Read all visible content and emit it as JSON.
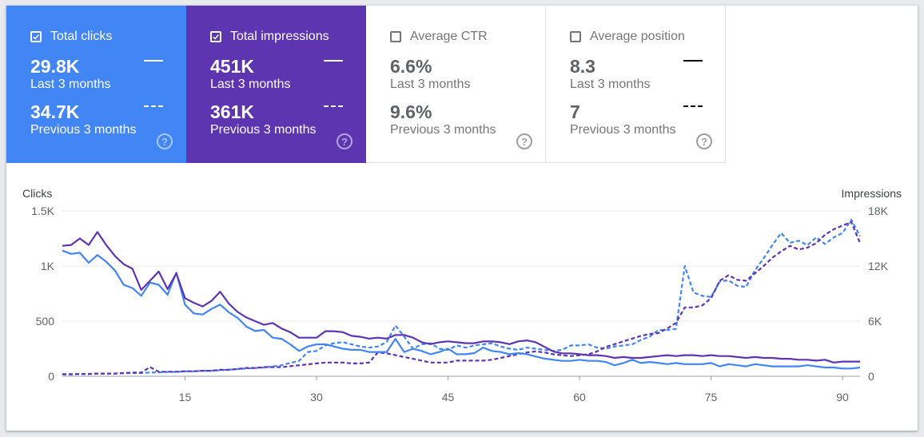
{
  "tiles": [
    {
      "label": "Total clicks",
      "checked": true,
      "current": "29.8K",
      "current_label": "Last 3 months",
      "previous": "34.7K",
      "previous_label": "Previous 3 months",
      "help": "?"
    },
    {
      "label": "Total impressions",
      "checked": true,
      "current": "451K",
      "current_label": "Last 3 months",
      "previous": "361K",
      "previous_label": "Previous 3 months",
      "help": "?"
    },
    {
      "label": "Average CTR",
      "checked": false,
      "current": "6.6%",
      "current_label": "Last 3 months",
      "previous": "9.6%",
      "previous_label": "Previous 3 months",
      "help": "?"
    },
    {
      "label": "Average position",
      "checked": false,
      "current": "8.3",
      "current_label": "Last 3 months",
      "previous": "7",
      "previous_label": "Previous 3 months",
      "help": "?"
    }
  ],
  "colors": {
    "clicks": "#4285f4",
    "impressions": "#5e35b1"
  },
  "chart_data": {
    "type": "line",
    "y_left": {
      "label": "Clicks",
      "range": [
        0,
        1500
      ],
      "ticks": [
        "0",
        "500",
        "1K",
        "1.5K"
      ]
    },
    "y_right": {
      "label": "Impressions",
      "range": [
        0,
        18000
      ],
      "ticks": [
        "0",
        "6K",
        "12K",
        "18K"
      ]
    },
    "x": {
      "range": [
        1,
        92
      ],
      "ticks": [
        "15",
        "30",
        "45",
        "60",
        "75",
        "90"
      ]
    },
    "grid": true,
    "series": [
      {
        "key": "clicks_last",
        "axis": "left",
        "color": "#4285f4",
        "style": "solid",
        "values": [
          1140,
          1110,
          1120,
          1030,
          1100,
          1040,
          960,
          830,
          800,
          730,
          850,
          830,
          740,
          940,
          650,
          570,
          560,
          610,
          650,
          580,
          530,
          450,
          410,
          420,
          350,
          340,
          290,
          230,
          270,
          290,
          290,
          270,
          250,
          240,
          240,
          220,
          220,
          220,
          340,
          220,
          250,
          230,
          200,
          220,
          250,
          200,
          200,
          210,
          260,
          230,
          220,
          200,
          210,
          200,
          180,
          160,
          150,
          140,
          140,
          150,
          140,
          140,
          130,
          100,
          120,
          150,
          120,
          130,
          120,
          110,
          120,
          110,
          110,
          110,
          120,
          90,
          110,
          100,
          90,
          110,
          100,
          90,
          90,
          90,
          90,
          100,
          90,
          80,
          80,
          70,
          70,
          80
        ]
      },
      {
        "key": "impressions_last",
        "axis": "right",
        "color": "#5e35b1",
        "style": "solid",
        "values": [
          14200,
          14300,
          15000,
          14300,
          15700,
          14300,
          13100,
          12200,
          11700,
          9400,
          10400,
          11400,
          9500,
          11200,
          8500,
          8000,
          7600,
          8200,
          9200,
          7900,
          7000,
          6400,
          6000,
          5600,
          5800,
          5200,
          4800,
          4200,
          4200,
          4200,
          4900,
          4900,
          4800,
          4400,
          4300,
          4100,
          4200,
          4100,
          4500,
          4500,
          4200,
          3700,
          3500,
          3700,
          3800,
          3700,
          3600,
          3600,
          3800,
          3800,
          3700,
          3500,
          3800,
          3900,
          3700,
          3200,
          2700,
          2500,
          2500,
          2400,
          2300,
          2300,
          2200,
          2000,
          2100,
          2000,
          2000,
          2100,
          2200,
          2300,
          2200,
          2300,
          2300,
          2200,
          2300,
          2200,
          2200,
          2100,
          2000,
          2100,
          2000,
          2000,
          1900,
          1900,
          1800,
          1800,
          1700,
          1800,
          1500,
          1600,
          1600,
          1600
        ]
      },
      {
        "key": "clicks_prev",
        "axis": "left",
        "color": "#4285f4",
        "style": "dashed",
        "values": [
          20,
          20,
          20,
          20,
          25,
          25,
          25,
          30,
          30,
          30,
          35,
          35,
          40,
          40,
          45,
          45,
          50,
          50,
          55,
          60,
          65,
          70,
          75,
          80,
          90,
          100,
          120,
          140,
          220,
          230,
          280,
          300,
          310,
          290,
          270,
          260,
          270,
          310,
          460,
          360,
          250,
          290,
          300,
          250,
          240,
          280,
          260,
          280,
          290,
          300,
          270,
          250,
          240,
          260,
          250,
          240,
          230,
          240,
          280,
          280,
          290,
          260,
          250,
          270,
          280,
          290,
          330,
          360,
          420,
          420,
          430,
          1000,
          760,
          730,
          720,
          860,
          870,
          820,
          810,
          960,
          1070,
          1190,
          1300,
          1210,
          1230,
          1190,
          1260,
          1200,
          1260,
          1300,
          1420,
          1270
        ]
      },
      {
        "key": "impressions_prev",
        "axis": "right",
        "color": "#5e35b1",
        "style": "dashed",
        "values": [
          200,
          200,
          250,
          250,
          300,
          300,
          300,
          350,
          400,
          400,
          1000,
          500,
          500,
          500,
          550,
          550,
          600,
          600,
          700,
          700,
          800,
          900,
          900,
          1000,
          1000,
          1000,
          1100,
          1200,
          1300,
          1400,
          1500,
          1500,
          1500,
          1400,
          1400,
          1500,
          2600,
          2500,
          2300,
          2100,
          1900,
          1700,
          1500,
          1500,
          1500,
          1700,
          1700,
          1700,
          1700,
          1800,
          2000,
          2200,
          2400,
          2600,
          2700,
          2600,
          2400,
          2300,
          2200,
          2300,
          2400,
          2700,
          3200,
          3500,
          3800,
          4100,
          4400,
          4600,
          4700,
          5200,
          5800,
          7500,
          7500,
          7700,
          8500,
          10400,
          11000,
          10500,
          10400,
          11200,
          12000,
          12900,
          13600,
          14200,
          13800,
          14000,
          14500,
          15400,
          16000,
          16400,
          16800,
          14500
        ]
      }
    ]
  }
}
